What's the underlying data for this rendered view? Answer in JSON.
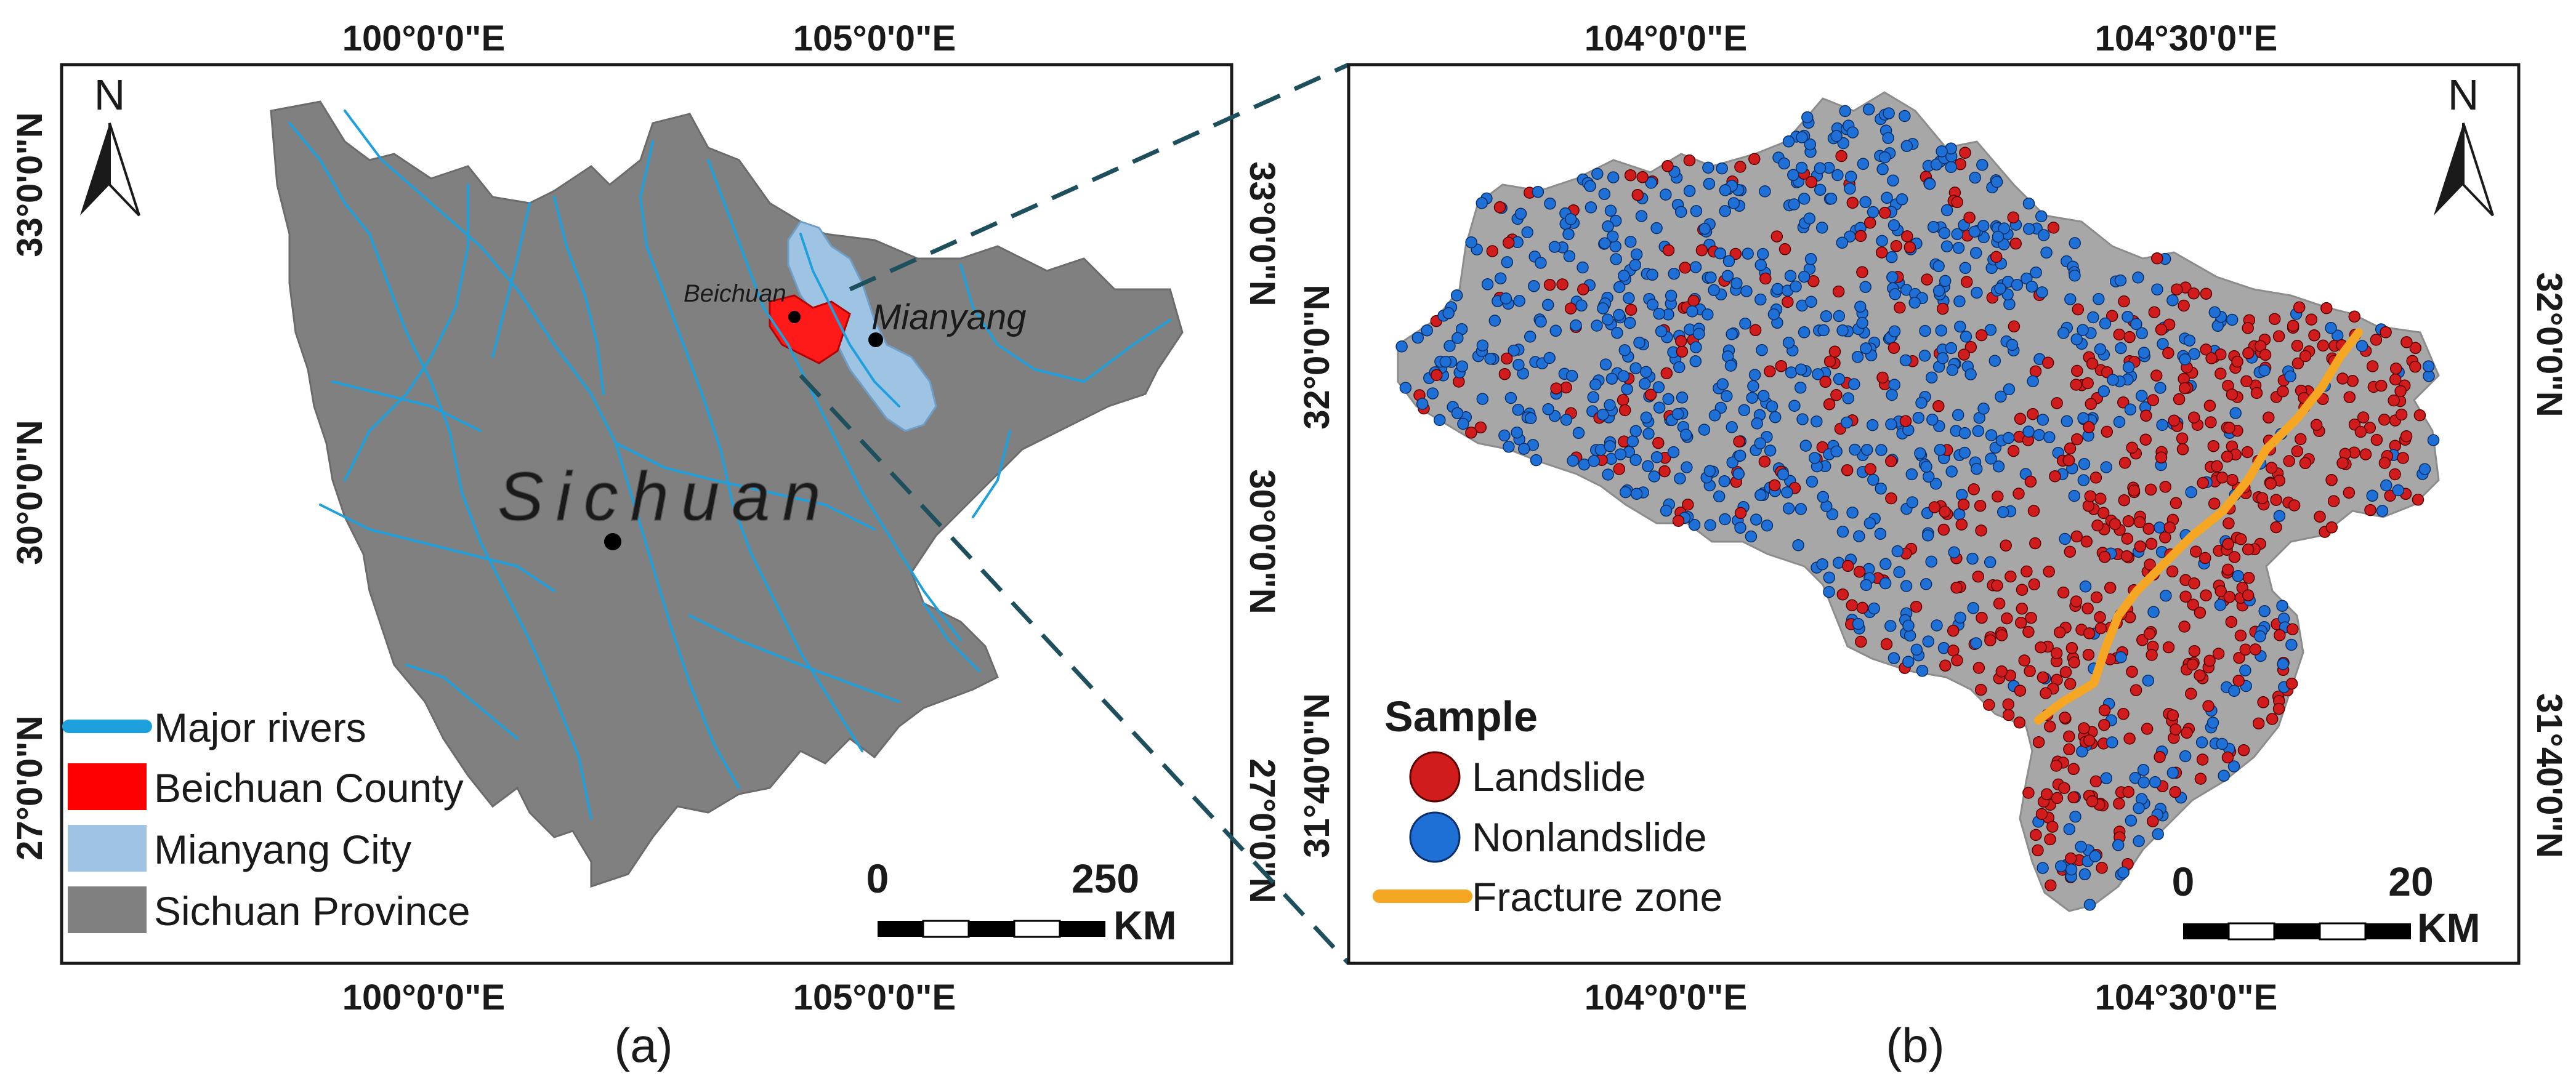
{
  "panel_a": {
    "caption": "(a)",
    "ticks_top": [
      "100°0'0\"E",
      "105°0'0\"E"
    ],
    "ticks_bottom": [
      "100°0'0\"E",
      "105°0'0\"E"
    ],
    "ticks_left": [
      "33°0'0\"N",
      "30°0'0\"N",
      "27°0'0\"N"
    ],
    "ticks_right": [
      "33°0'0\"N",
      "30°0'0\"N",
      "27°0'0\"N"
    ],
    "north": "N",
    "province_label": "Sichuan",
    "place_beichuan": "Beichuan",
    "place_mianyang": "Mianyang",
    "scale": {
      "start": "0",
      "end": "250",
      "unit": "KM"
    },
    "legend": [
      {
        "label": "Major rivers",
        "color": "#1ea0dc",
        "kind": "line"
      },
      {
        "label": "Beichuan County",
        "color": "#ff0000",
        "kind": "box"
      },
      {
        "label": "Mianyang City",
        "color": "#9ec3e3",
        "kind": "box"
      },
      {
        "label": "Sichuan Province",
        "color": "#808080",
        "kind": "box"
      }
    ]
  },
  "panel_b": {
    "caption": "(b)",
    "ticks_top": [
      "104°0'0\"E",
      "104°30'0\"E"
    ],
    "ticks_bottom": [
      "104°0'0\"E",
      "104°30'0\"E"
    ],
    "ticks_left": [
      "32°0'0\"N",
      "31°40'0\"N"
    ],
    "ticks_right": [
      "32°0'0\"N",
      "31°40'0\"N"
    ],
    "north": "N",
    "scale": {
      "start": "0",
      "end": "20",
      "unit": "KM"
    },
    "legend_title": "Sample",
    "legend": [
      {
        "label": "Landslide",
        "color": "#d01c1c",
        "kind": "dot"
      },
      {
        "label": "Nonlandslide",
        "color": "#1e6fd6",
        "kind": "dot"
      },
      {
        "label": "Fracture zone",
        "color": "#f5a623",
        "kind": "line"
      }
    ]
  }
}
